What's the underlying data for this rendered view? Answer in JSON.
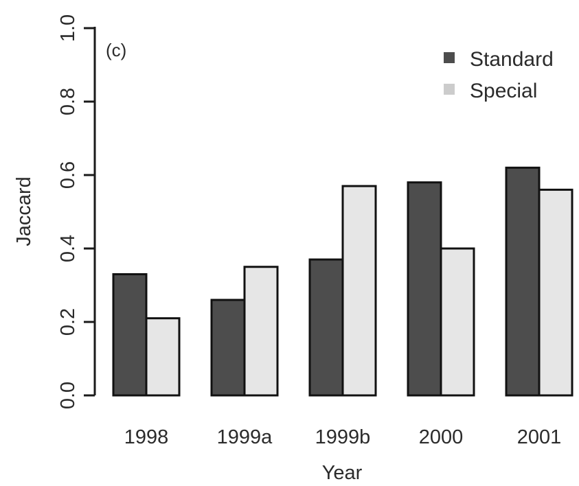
{
  "chart_data": {
    "type": "bar",
    "panel_label": "(c)",
    "xlabel": "Year",
    "ylabel": "Jaccard",
    "ylim": [
      0,
      1
    ],
    "yticks": [
      "0.0",
      "0.2",
      "0.4",
      "0.6",
      "0.8",
      "1.0"
    ],
    "categories": [
      "1998",
      "1999a",
      "1999b",
      "2000",
      "2001"
    ],
    "series": [
      {
        "name": "Standard",
        "color": "#4d4d4d",
        "values": [
          0.33,
          0.26,
          0.37,
          0.58,
          0.62
        ]
      },
      {
        "name": "Special",
        "color": "#e6e6e6",
        "values": [
          0.21,
          0.35,
          0.57,
          0.4,
          0.56
        ]
      }
    ],
    "legend_position": "top-right",
    "grid": false
  }
}
